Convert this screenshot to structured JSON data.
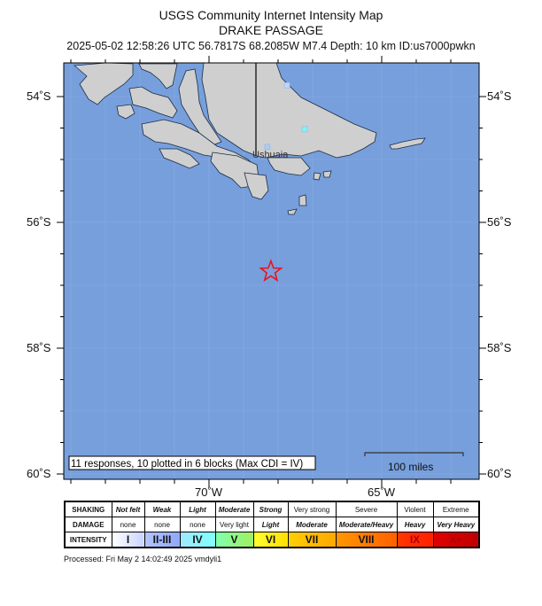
{
  "header": {
    "title": "USGS Community Internet Intensity Map",
    "region": "DRAKE PASSAGE",
    "info": "2025-05-02 12:58:26 UTC 56.7817S 68.2085W M7.4 Depth: 10 km ID:us7000pwkn"
  },
  "map": {
    "lat_labels": [
      "54˚S",
      "56˚S",
      "58˚S",
      "60˚S"
    ],
    "lon_labels": [
      "70˚W",
      "65˚W"
    ],
    "city_label": "Ushuaia",
    "summary": "11 responses, 10 plotted in 6 blocks (Max CDI = IV)",
    "scale_label": "100 miles",
    "epicenter": {
      "lat": -56.7817,
      "lon": -68.2085,
      "icon": "red-star-icon"
    },
    "colors": {
      "ocean": "#779fdc",
      "land": "#cfcfcf",
      "epicenter": "#e8141c"
    },
    "cdi_blocks": [
      {
        "lat": -53.82,
        "lon": -67.74,
        "color": "#bfd4ff"
      },
      {
        "lat": -54.52,
        "lon": -67.23,
        "color": "#7ff4ff"
      },
      {
        "lat": -54.8,
        "lon": -68.31,
        "color": "#a9ccf5"
      }
    ]
  },
  "legend": {
    "row_labels": [
      "SHAKING",
      "DAMAGE",
      "INTENSITY"
    ],
    "shaking": [
      "Not felt",
      "Weak",
      "Light",
      "Moderate",
      "Strong",
      "Very strong",
      "Severe",
      "Violent",
      "Extreme"
    ],
    "damage": [
      "none",
      "none",
      "none",
      "Very light",
      "Light",
      "Moderate",
      "Moderate/Heavy",
      "Heavy",
      "Very Heavy"
    ],
    "intensity": [
      "I",
      "II-III",
      "IV",
      "V",
      "VI",
      "VII",
      "VIII",
      "IX",
      "X+"
    ],
    "intensity_colors": [
      [
        "#ffffff",
        "#c8d4ff"
      ],
      [
        "#b4c4ff",
        "#90a8f8"
      ],
      [
        "#a0e8ff",
        "#80ffff"
      ],
      [
        "#80ffb0",
        "#a0f060"
      ],
      [
        "#ffff30",
        "#ffe000"
      ],
      [
        "#ffd000",
        "#ffa800"
      ],
      [
        "#ff9800",
        "#ff6000"
      ],
      [
        "#ff3800",
        "#ff2000"
      ],
      [
        "#e00000",
        "#c00000"
      ]
    ]
  },
  "footer": {
    "processed": "Processed: Fri May  2 14:02:49 2025 vmdyli1"
  }
}
